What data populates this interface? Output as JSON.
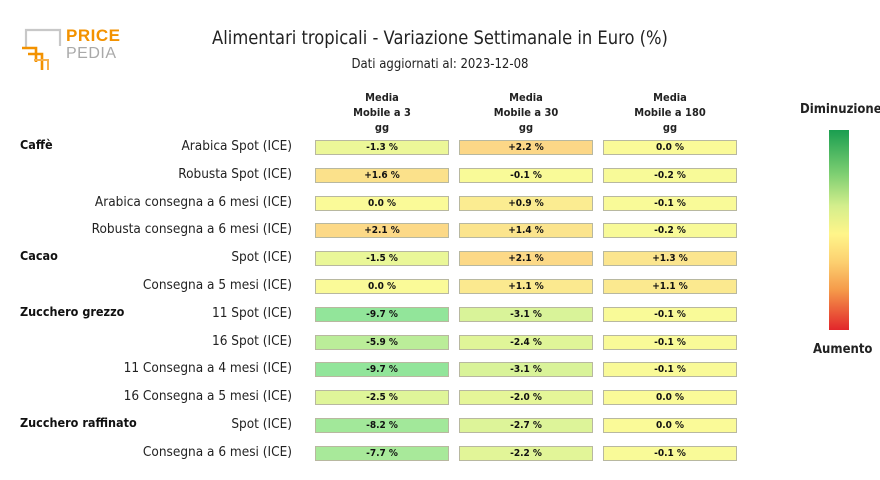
{
  "logo": {
    "line1": "PRICE",
    "line2": "PEDIA"
  },
  "title": "Alimentari tropicali - Variazione Settimanale in Euro (%)",
  "subtitle": "Dati aggiornati al: 2023-12-08",
  "legend": {
    "top": "Diminuzione",
    "bottom": "Aumento"
  },
  "colors": {
    "strong_decrease": "#1a9e50",
    "neutral": "#fff58a",
    "strong_increase": "#e2262b"
  },
  "chart_data": {
    "type": "table",
    "title": "Alimentari tropicali - Variazione Settimanale in Euro (%)",
    "columns": [
      {
        "lines": [
          "Media",
          "Mobile a 3",
          "gg"
        ]
      },
      {
        "lines": [
          "Media",
          "Mobile a 30",
          "gg"
        ]
      },
      {
        "lines": [
          "Media",
          "Mobile a 180",
          "gg"
        ]
      }
    ],
    "groups": [
      {
        "name": "Caffè",
        "rows": [
          {
            "label": "Arabica Spot (ICE)",
            "values": [
              -1.3,
              2.2,
              0.0
            ],
            "text": [
              "-1.3 %",
              "+2.2 %",
              "0.0 %"
            ]
          },
          {
            "label": "Robusta Spot (ICE)",
            "values": [
              1.6,
              -0.1,
              -0.2
            ],
            "text": [
              "+1.6 %",
              "-0.1 %",
              "-0.2 %"
            ]
          },
          {
            "label": "Arabica consegna a 6 mesi (ICE)",
            "values": [
              0.0,
              0.9,
              -0.1
            ],
            "text": [
              "0.0 %",
              "+0.9 %",
              "-0.1 %"
            ]
          },
          {
            "label": "Robusta consegna a 6 mesi (ICE)",
            "values": [
              2.1,
              1.4,
              -0.2
            ],
            "text": [
              "+2.1 %",
              "+1.4 %",
              "-0.2 %"
            ]
          }
        ]
      },
      {
        "name": "Cacao",
        "rows": [
          {
            "label": "Spot (ICE)",
            "values": [
              -1.5,
              2.1,
              1.3
            ],
            "text": [
              "-1.5 %",
              "+2.1 %",
              "+1.3 %"
            ]
          },
          {
            "label": "Consegna a 5 mesi (ICE)",
            "values": [
              0.0,
              1.1,
              1.1
            ],
            "text": [
              "0.0 %",
              "+1.1 %",
              "+1.1 %"
            ]
          }
        ]
      },
      {
        "name": "Zucchero grezzo",
        "rows": [
          {
            "label": "11 Spot (ICE)",
            "values": [
              -9.7,
              -3.1,
              -0.1
            ],
            "text": [
              "-9.7 %",
              "-3.1 %",
              "-0.1 %"
            ]
          },
          {
            "label": "16 Spot (ICE)",
            "values": [
              -5.9,
              -2.4,
              -0.1
            ],
            "text": [
              "-5.9 %",
              "-2.4 %",
              "-0.1 %"
            ]
          },
          {
            "label": "11 Consegna a 4 mesi (ICE)",
            "values": [
              -9.7,
              -3.1,
              -0.1
            ],
            "text": [
              "-9.7 %",
              "-3.1 %",
              "-0.1 %"
            ]
          },
          {
            "label": "16 Consegna a 5 mesi (ICE)",
            "values": [
              -2.5,
              -2.0,
              0.0
            ],
            "text": [
              "-2.5 %",
              "-2.0 %",
              "0.0 %"
            ]
          }
        ]
      },
      {
        "name": "Zucchero raffinato",
        "rows": [
          {
            "label": "Spot (ICE)",
            "values": [
              -8.2,
              -2.7,
              0.0
            ],
            "text": [
              "-8.2 %",
              "-2.7 %",
              "0.0 %"
            ]
          },
          {
            "label": "Consegna a 6 mesi (ICE)",
            "values": [
              -7.7,
              -2.2,
              -0.1
            ],
            "text": [
              "-7.7 %",
              "-2.2 %",
              "-0.1 %"
            ]
          }
        ]
      }
    ]
  }
}
